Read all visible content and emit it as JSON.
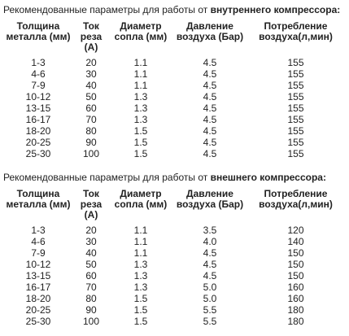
{
  "sections": [
    {
      "intro": "Рекомендованные параметры для работы от ",
      "bold": "внутреннего компрессора:",
      "headers": [
        "Толщина металла (мм)",
        "Ток реза (А)",
        "Диаметр сопла (мм)",
        "Давление воздуха (Бар)",
        "Потребление воздуха(л,мин)"
      ],
      "rows": [
        [
          "1-3",
          "20",
          "1.1",
          "4.5",
          "155"
        ],
        [
          "4-6",
          "30",
          "1.1",
          "4.5",
          "155"
        ],
        [
          "7-9",
          "40",
          "1.1",
          "4.5",
          "155"
        ],
        [
          "10-12",
          "50",
          "1.3",
          "4.5",
          "155"
        ],
        [
          "13-15",
          "60",
          "1.3",
          "4.5",
          "155"
        ],
        [
          "16-17",
          "70",
          "1.3",
          "4.5",
          "155"
        ],
        [
          "18-20",
          "80",
          "1.5",
          "4.5",
          "155"
        ],
        [
          "20-25",
          "90",
          "1.5",
          "4.5",
          "155"
        ],
        [
          "25-30",
          "100",
          "1.5",
          "4.5",
          "155"
        ]
      ]
    },
    {
      "intro": "Рекомендованные параметры для работы от ",
      "bold": "внешнего компрессора:",
      "headers": [
        "Толщина металла (мм)",
        "Ток реза (А)",
        "Диаметр сопла (мм)",
        "Давление воздуха (Бар)",
        "Потребление воздуха(л,мин)"
      ],
      "rows": [
        [
          "1-3",
          "20",
          "1.1",
          "3.5",
          "120"
        ],
        [
          "4-6",
          "30",
          "1.1",
          "4.0",
          "140"
        ],
        [
          "7-9",
          "40",
          "1.1",
          "4.5",
          "150"
        ],
        [
          "10-12",
          "50",
          "1.3",
          "4.5",
          "150"
        ],
        [
          "13-15",
          "60",
          "1.3",
          "4.5",
          "150"
        ],
        [
          "16-17",
          "70",
          "1.3",
          "5.0",
          "160"
        ],
        [
          "18-20",
          "80",
          "1.5",
          "5.0",
          "160"
        ],
        [
          "20-25",
          "90",
          "1.5",
          "5.5",
          "180"
        ],
        [
          "25-30",
          "100",
          "1.5",
          "5.5",
          "180"
        ]
      ]
    }
  ]
}
